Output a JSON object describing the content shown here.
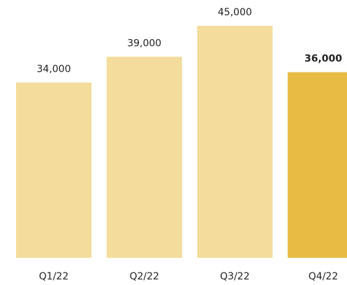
{
  "chart_data": {
    "type": "bar",
    "categories": [
      "Q1/22",
      "Q2/22",
      "Q3/22",
      "Q4/22"
    ],
    "values": [
      34000,
      39000,
      45000,
      36000
    ],
    "value_labels": [
      "34,000",
      "39,000",
      "45,000",
      "36,000"
    ],
    "colors": [
      "#f3dc9c",
      "#f3dc9c",
      "#f3dc9c",
      "#e6bc45"
    ]
  }
}
